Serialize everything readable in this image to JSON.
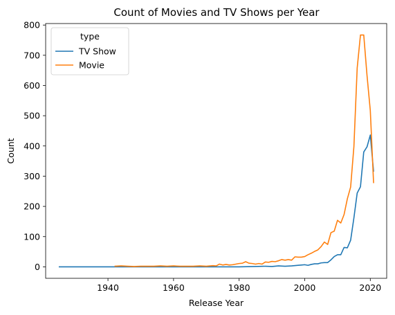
{
  "chart_data": {
    "type": "line",
    "title": "Count of Movies and TV Shows per Year",
    "xlabel": "Release Year",
    "ylabel": "Count",
    "xlim": [
      1921,
      2025
    ],
    "ylim": [
      -38,
      805
    ],
    "xticks": [
      1940,
      1960,
      1980,
      2000,
      2020
    ],
    "yticks": [
      0,
      100,
      200,
      300,
      400,
      500,
      600,
      700,
      800
    ],
    "grid": false,
    "legend": {
      "title": "type",
      "placement": "top-left"
    },
    "series": [
      {
        "name": "TV Show",
        "color": "#1f77b4",
        "x": [
          1925,
          1930,
          1935,
          1940,
          1945,
          1950,
          1955,
          1960,
          1965,
          1970,
          1975,
          1980,
          1985,
          1988,
          1990,
          1992,
          1994,
          1996,
          1998,
          1999,
          2000,
          2001,
          2002,
          2003,
          2004,
          2005,
          2006,
          2007,
          2008,
          2009,
          2010,
          2011,
          2012,
          2013,
          2014,
          2015,
          2016,
          2017,
          2018,
          2019,
          2020,
          2021
        ],
        "y": [
          0,
          0,
          0,
          0,
          0,
          0,
          0,
          0,
          0,
          0,
          0,
          0,
          1,
          2,
          1,
          3,
          2,
          3,
          5,
          6,
          7,
          5,
          8,
          10,
          10,
          13,
          14,
          14,
          23,
          34,
          40,
          40,
          64,
          63,
          88,
          162,
          244,
          265,
          380,
          397,
          436,
          315
        ]
      },
      {
        "name": "Movie",
        "color": "#ff7f0e",
        "x": [
          1942,
          1944,
          1946,
          1948,
          1950,
          1952,
          1954,
          1956,
          1958,
          1960,
          1962,
          1964,
          1966,
          1968,
          1970,
          1972,
          1973,
          1974,
          1975,
          1976,
          1977,
          1978,
          1979,
          1980,
          1981,
          1982,
          1983,
          1984,
          1985,
          1986,
          1987,
          1988,
          1989,
          1990,
          1991,
          1992,
          1993,
          1994,
          1995,
          1996,
          1997,
          1998,
          1999,
          2000,
          2001,
          2002,
          2003,
          2004,
          2005,
          2006,
          2007,
          2008,
          2009,
          2010,
          2011,
          2012,
          2013,
          2014,
          2015,
          2016,
          2017,
          2018,
          2019,
          2020,
          2021
        ],
        "y": [
          2,
          3,
          2,
          1,
          2,
          2,
          2,
          3,
          2,
          3,
          2,
          2,
          2,
          3,
          2,
          4,
          3,
          9,
          6,
          8,
          6,
          7,
          9,
          11,
          12,
          17,
          12,
          11,
          9,
          11,
          9,
          16,
          15,
          18,
          17,
          20,
          24,
          22,
          24,
          22,
          33,
          32,
          32,
          34,
          40,
          45,
          51,
          56,
          67,
          82,
          74,
          113,
          118,
          154,
          145,
          173,
          225,
          264,
          398,
          658,
          767,
          767,
          633,
          517,
          277
        ]
      }
    ]
  }
}
